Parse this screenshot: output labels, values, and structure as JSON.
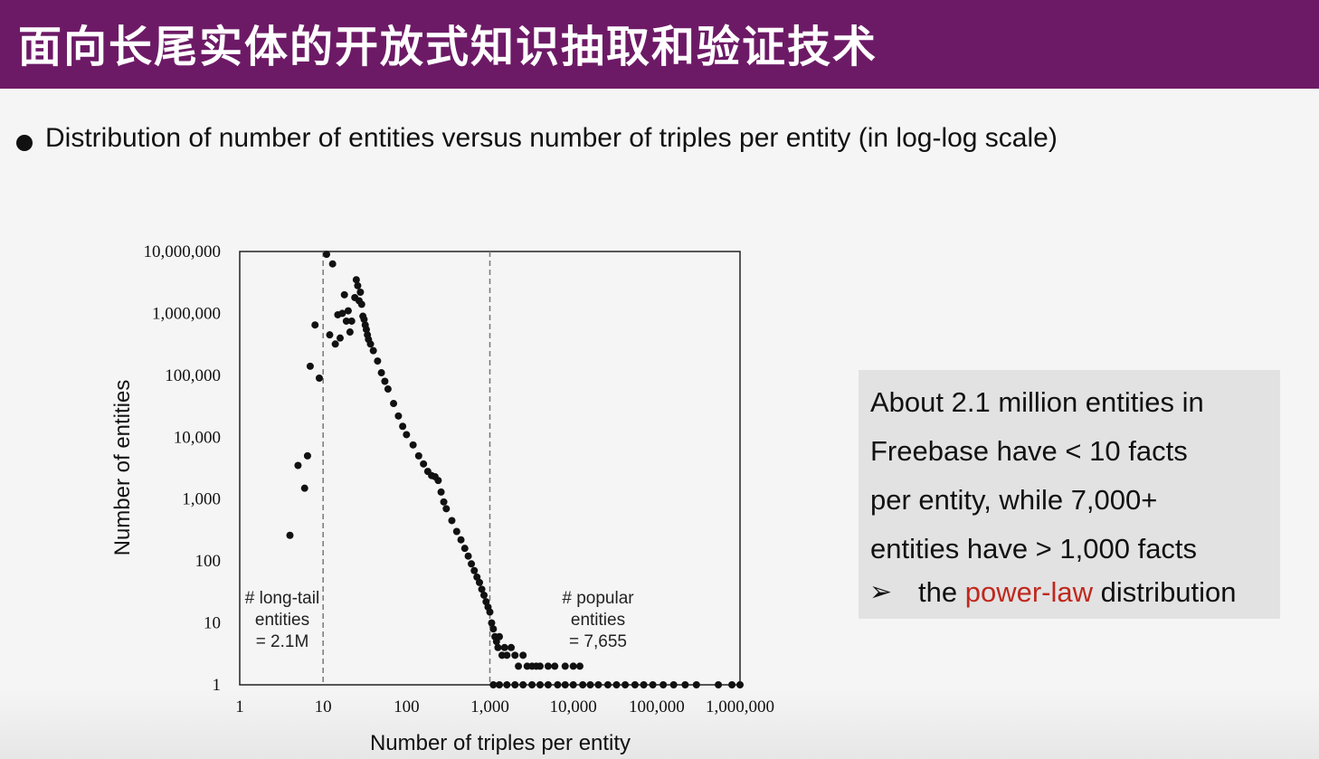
{
  "slide": {
    "title": "面向长尾实体的开放式知识抽取和验证技术",
    "bullet": "Distribution of number of entities versus number of triples per entity (in log-log scale)",
    "colors": {
      "title_bar": "#6d1a66",
      "highlight": "#c0281e",
      "callout_bg": "#e2e2e2"
    }
  },
  "callout": {
    "lines": [
      "About 2.1 million entities in",
      "Freebase have < 10 facts",
      "per entity, while 7,000+",
      "entities have > 1,000 facts"
    ],
    "arrow_icon": "➢",
    "last_pre": "the ",
    "last_highlight": "power-law",
    "last_post": " distribution"
  },
  "chart_data": {
    "type": "scatter",
    "log_x": true,
    "log_y": true,
    "xlabel": "Number of triples per entity",
    "ylabel": "Number of entities",
    "xlim": [
      1,
      1000000
    ],
    "ylim": [
      1,
      10000000
    ],
    "x_ticks": [
      "1",
      "10",
      "100",
      "1,000",
      "10,000",
      "100,000",
      "1,000,000"
    ],
    "y_ticks": [
      "1",
      "10",
      "100",
      "1,000",
      "10,000",
      "100,000",
      "1,000,000",
      "10,000,000"
    ],
    "reference_lines_x": [
      10,
      1000
    ],
    "annotations": [
      {
        "lines": [
          "# long-tail",
          "entities",
          "= 2.1M"
        ]
      },
      {
        "lines": [
          "# popular",
          "entities",
          "= 7,655"
        ]
      }
    ],
    "points": [
      [
        4,
        260
      ],
      [
        5,
        3500
      ],
      [
        6,
        1500
      ],
      [
        6.5,
        5000
      ],
      [
        7,
        140000
      ],
      [
        8,
        650000
      ],
      [
        9,
        90000
      ],
      [
        11,
        9000000
      ],
      [
        12,
        450000
      ],
      [
        13,
        6300000
      ],
      [
        14,
        320000
      ],
      [
        15,
        950000
      ],
      [
        16,
        400000
      ],
      [
        17,
        1000000
      ],
      [
        18,
        2000000
      ],
      [
        19,
        750000
      ],
      [
        20,
        1100000
      ],
      [
        21,
        500000
      ],
      [
        22,
        750000
      ],
      [
        24,
        1800000
      ],
      [
        25,
        3500000
      ],
      [
        26,
        2800000
      ],
      [
        27,
        1600000
      ],
      [
        28,
        2200000
      ],
      [
        29,
        1400000
      ],
      [
        30,
        900000
      ],
      [
        31,
        800000
      ],
      [
        32,
        650000
      ],
      [
        33,
        550000
      ],
      [
        34,
        450000
      ],
      [
        35,
        380000
      ],
      [
        37,
        320000
      ],
      [
        40,
        250000
      ],
      [
        45,
        170000
      ],
      [
        50,
        110000
      ],
      [
        55,
        80000
      ],
      [
        60,
        60000
      ],
      [
        70,
        35000
      ],
      [
        80,
        22000
      ],
      [
        90,
        15000
      ],
      [
        100,
        11000
      ],
      [
        120,
        7500
      ],
      [
        140,
        5000
      ],
      [
        160,
        3700
      ],
      [
        180,
        2800
      ],
      [
        200,
        2400
      ],
      [
        220,
        2300
      ],
      [
        240,
        2000
      ],
      [
        260,
        1300
      ],
      [
        280,
        900
      ],
      [
        300,
        700
      ],
      [
        350,
        450
      ],
      [
        400,
        300
      ],
      [
        450,
        220
      ],
      [
        500,
        160
      ],
      [
        550,
        120
      ],
      [
        600,
        90
      ],
      [
        650,
        70
      ],
      [
        700,
        55
      ],
      [
        750,
        45
      ],
      [
        800,
        35
      ],
      [
        850,
        28
      ],
      [
        900,
        22
      ],
      [
        950,
        18
      ],
      [
        1000,
        15
      ],
      [
        1050,
        10
      ],
      [
        1100,
        8
      ],
      [
        1150,
        6
      ],
      [
        1200,
        5
      ],
      [
        1250,
        4
      ],
      [
        1300,
        6
      ],
      [
        1400,
        3
      ],
      [
        1500,
        4
      ],
      [
        1600,
        3
      ],
      [
        1800,
        4
      ],
      [
        2000,
        3
      ],
      [
        2200,
        2
      ],
      [
        2500,
        3
      ],
      [
        2800,
        2
      ],
      [
        3200,
        2
      ],
      [
        3600,
        2
      ],
      [
        4000,
        2
      ],
      [
        5000,
        2
      ],
      [
        6000,
        2
      ],
      [
        8000,
        2
      ],
      [
        10000,
        2
      ],
      [
        12000,
        2
      ],
      [
        1100,
        1
      ],
      [
        1300,
        1
      ],
      [
        1600,
        1
      ],
      [
        2000,
        1
      ],
      [
        2500,
        1
      ],
      [
        3200,
        1
      ],
      [
        4000,
        1
      ],
      [
        5000,
        1
      ],
      [
        6500,
        1
      ],
      [
        8000,
        1
      ],
      [
        10000,
        1
      ],
      [
        13000,
        1
      ],
      [
        16000,
        1
      ],
      [
        20000,
        1
      ],
      [
        26000,
        1
      ],
      [
        33000,
        1
      ],
      [
        42000,
        1
      ],
      [
        55000,
        1
      ],
      [
        70000,
        1
      ],
      [
        90000,
        1
      ],
      [
        120000,
        1
      ],
      [
        160000,
        1
      ],
      [
        220000,
        1
      ],
      [
        300000,
        1
      ],
      [
        550000,
        1
      ],
      [
        800000,
        1
      ],
      [
        1000000,
        1
      ]
    ]
  }
}
